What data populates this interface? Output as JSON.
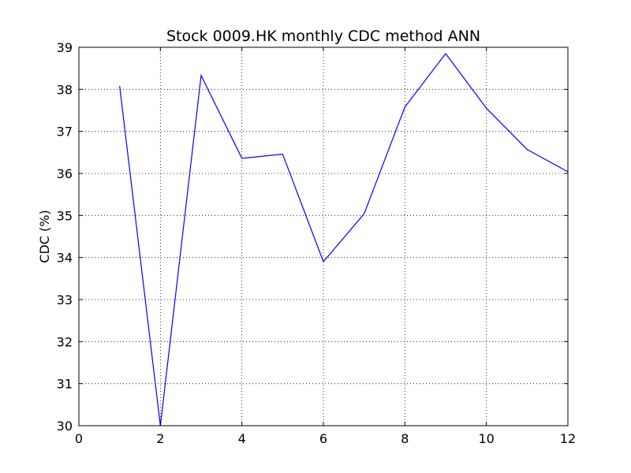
{
  "chart_data": {
    "type": "line",
    "title": "Stock 0009.HK monthly CDC method ANN",
    "xlabel": "",
    "ylabel": "CDC (%)",
    "xlim": [
      0,
      12
    ],
    "ylim": [
      30,
      39
    ],
    "x_ticks": [
      "0",
      "2",
      "4",
      "6",
      "8",
      "10",
      "12"
    ],
    "y_ticks": [
      "30",
      "31",
      "32",
      "33",
      "34",
      "35",
      "36",
      "37",
      "38",
      "39"
    ],
    "grid": true,
    "legend": "none",
    "series": [
      {
        "color": "#0000ff",
        "x": [
          1,
          2,
          3,
          4,
          5,
          6,
          7,
          8,
          9,
          10,
          11,
          12
        ],
        "y": [
          38.08,
          30.0,
          38.33,
          36.36,
          36.46,
          33.9,
          35.04,
          37.58,
          38.85,
          37.55,
          36.57,
          36.04
        ]
      }
    ]
  }
}
